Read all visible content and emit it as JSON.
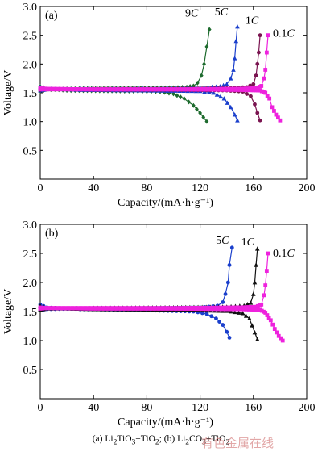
{
  "chart_data": [
    {
      "type": "line",
      "panel_label": "(a)",
      "xlabel": "Capacity/(mA·h·g⁻¹)",
      "ylabel": "Voltage/V",
      "xlim": [
        0,
        200
      ],
      "ylim": [
        0.0,
        3.0
      ],
      "xticks": [
        0,
        40,
        80,
        120,
        160,
        200
      ],
      "yticks": [
        0.5,
        1.0,
        1.5,
        2.0,
        2.5,
        3.0
      ],
      "series": [
        {
          "name": "9C",
          "color": "#1e6b2e",
          "marker": "diamond",
          "charge": [
            [
              0,
              1.53
            ],
            [
              5,
              1.55
            ],
            [
              20,
              1.57
            ],
            [
              60,
              1.58
            ],
            [
              100,
              1.59
            ],
            [
              110,
              1.6
            ],
            [
              115,
              1.62
            ],
            [
              118,
              1.67
            ],
            [
              121,
              1.8
            ],
            [
              123,
              2.0
            ],
            [
              125,
              2.3
            ],
            [
              127,
              2.6
            ]
          ],
          "discharge": [
            [
              0,
              1.61
            ],
            [
              5,
              1.57
            ],
            [
              20,
              1.54
            ],
            [
              60,
              1.53
            ],
            [
              90,
              1.52
            ],
            [
              100,
              1.48
            ],
            [
              108,
              1.4
            ],
            [
              115,
              1.28
            ],
            [
              120,
              1.15
            ],
            [
              125,
              1.0
            ]
          ]
        },
        {
          "name": "5C",
          "color": "#1a3fcc",
          "marker": "triangle-up",
          "charge": [
            [
              0,
              1.54
            ],
            [
              5,
              1.56
            ],
            [
              30,
              1.57
            ],
            [
              80,
              1.58
            ],
            [
              120,
              1.59
            ],
            [
              135,
              1.61
            ],
            [
              140,
              1.65
            ],
            [
              143,
              1.75
            ],
            [
              145,
              1.9
            ],
            [
              146,
              2.1
            ],
            [
              147,
              2.4
            ],
            [
              148,
              2.65
            ]
          ],
          "discharge": [
            [
              0,
              1.6
            ],
            [
              5,
              1.57
            ],
            [
              30,
              1.55
            ],
            [
              80,
              1.54
            ],
            [
              120,
              1.53
            ],
            [
              130,
              1.5
            ],
            [
              138,
              1.4
            ],
            [
              143,
              1.25
            ],
            [
              146,
              1.12
            ],
            [
              148,
              1.02
            ]
          ]
        },
        {
          "name": "1C",
          "color": "#7a1450",
          "marker": "circle",
          "charge": [
            [
              0,
              1.55
            ],
            [
              5,
              1.56
            ],
            [
              40,
              1.57
            ],
            [
              100,
              1.57
            ],
            [
              140,
              1.58
            ],
            [
              155,
              1.6
            ],
            [
              160,
              1.65
            ],
            [
              162,
              1.8
            ],
            [
              163,
              2.0
            ],
            [
              164,
              2.2
            ],
            [
              165,
              2.5
            ]
          ],
          "discharge": [
            [
              0,
              1.58
            ],
            [
              5,
              1.56
            ],
            [
              40,
              1.55
            ],
            [
              100,
              1.55
            ],
            [
              140,
              1.54
            ],
            [
              152,
              1.52
            ],
            [
              158,
              1.44
            ],
            [
              161,
              1.3
            ],
            [
              163,
              1.15
            ],
            [
              165,
              1.02
            ]
          ]
        },
        {
          "name": "0.1C",
          "color": "#ee22dd",
          "marker": "square",
          "charge": [
            [
              0,
              1.56
            ],
            [
              5,
              1.56
            ],
            [
              40,
              1.56
            ],
            [
              100,
              1.56
            ],
            [
              150,
              1.57
            ],
            [
              162,
              1.58
            ],
            [
              166,
              1.62
            ],
            [
              168,
              1.75
            ],
            [
              169,
              1.9
            ],
            [
              170,
              2.2
            ],
            [
              171,
              2.5
            ]
          ],
          "discharge": [
            [
              0,
              1.58
            ],
            [
              5,
              1.57
            ],
            [
              40,
              1.56
            ],
            [
              100,
              1.56
            ],
            [
              150,
              1.55
            ],
            [
              165,
              1.54
            ],
            [
              169,
              1.5
            ],
            [
              172,
              1.4
            ],
            [
              174,
              1.25
            ],
            [
              177,
              1.12
            ],
            [
              180,
              1.02
            ]
          ]
        }
      ]
    },
    {
      "type": "line",
      "panel_label": "(b)",
      "xlabel": "Capacity/(mA·h·g⁻¹)",
      "ylabel": "Voltage/V",
      "xlim": [
        0,
        200
      ],
      "ylim": [
        0.0,
        3.0
      ],
      "xticks": [
        0,
        40,
        80,
        120,
        160,
        200
      ],
      "yticks": [
        0.5,
        1.0,
        1.5,
        2.0,
        2.5,
        3.0
      ],
      "series": [
        {
          "name": "5C",
          "color": "#1a3fcc",
          "marker": "circle",
          "charge": [
            [
              0,
              1.52
            ],
            [
              5,
              1.54
            ],
            [
              30,
              1.55
            ],
            [
              80,
              1.56
            ],
            [
              120,
              1.57
            ],
            [
              133,
              1.6
            ],
            [
              137,
              1.66
            ],
            [
              139,
              1.8
            ],
            [
              141,
              2.0
            ],
            [
              142,
              2.3
            ],
            [
              144,
              2.6
            ]
          ],
          "discharge": [
            [
              0,
              1.62
            ],
            [
              5,
              1.57
            ],
            [
              30,
              1.54
            ],
            [
              80,
              1.52
            ],
            [
              115,
              1.5
            ],
            [
              125,
              1.46
            ],
            [
              132,
              1.38
            ],
            [
              137,
              1.27
            ],
            [
              140,
              1.15
            ],
            [
              142,
              1.05
            ]
          ]
        },
        {
          "name": "1C",
          "color": "#111111",
          "marker": "triangle-up",
          "charge": [
            [
              0,
              1.53
            ],
            [
              5,
              1.55
            ],
            [
              40,
              1.56
            ],
            [
              100,
              1.57
            ],
            [
              140,
              1.58
            ],
            [
              153,
              1.6
            ],
            [
              158,
              1.65
            ],
            [
              160,
              1.8
            ],
            [
              161,
              2.0
            ],
            [
              162,
              2.3
            ],
            [
              163,
              2.58
            ]
          ],
          "discharge": [
            [
              0,
              1.6
            ],
            [
              5,
              1.56
            ],
            [
              40,
              1.54
            ],
            [
              100,
              1.53
            ],
            [
              140,
              1.51
            ],
            [
              152,
              1.47
            ],
            [
              157,
              1.38
            ],
            [
              159,
              1.26
            ],
            [
              161,
              1.14
            ],
            [
              163,
              1.02
            ]
          ]
        },
        {
          "name": "0.1C",
          "color": "#ee22dd",
          "marker": "square",
          "charge": [
            [
              0,
              1.55
            ],
            [
              5,
              1.56
            ],
            [
              40,
              1.56
            ],
            [
              100,
              1.56
            ],
            [
              150,
              1.57
            ],
            [
              162,
              1.58
            ],
            [
              166,
              1.62
            ],
            [
              168,
              1.78
            ],
            [
              169,
              1.95
            ],
            [
              170,
              2.2
            ],
            [
              171,
              2.5
            ]
          ],
          "discharge": [
            [
              0,
              1.57
            ],
            [
              5,
              1.56
            ],
            [
              40,
              1.55
            ],
            [
              100,
              1.55
            ],
            [
              150,
              1.54
            ],
            [
              165,
              1.53
            ],
            [
              169,
              1.48
            ],
            [
              173,
              1.35
            ],
            [
              176,
              1.2
            ],
            [
              179,
              1.08
            ],
            [
              182,
              1.0
            ]
          ]
        }
      ]
    }
  ],
  "caption": {
    "a_label": "(a) Li",
    "a_sub1": "2",
    "a_mid": "TiO",
    "a_sub2": "3",
    "a_tail": "+TiO",
    "a_sub3": "2",
    "sep": "; ",
    "b_label": "(b) Li",
    "b_sub1": "2",
    "b_mid": "CO",
    "b_sub2": "3",
    "b_tail": "+TiO",
    "b_sub3": "2"
  },
  "watermark": "有色金属在线"
}
